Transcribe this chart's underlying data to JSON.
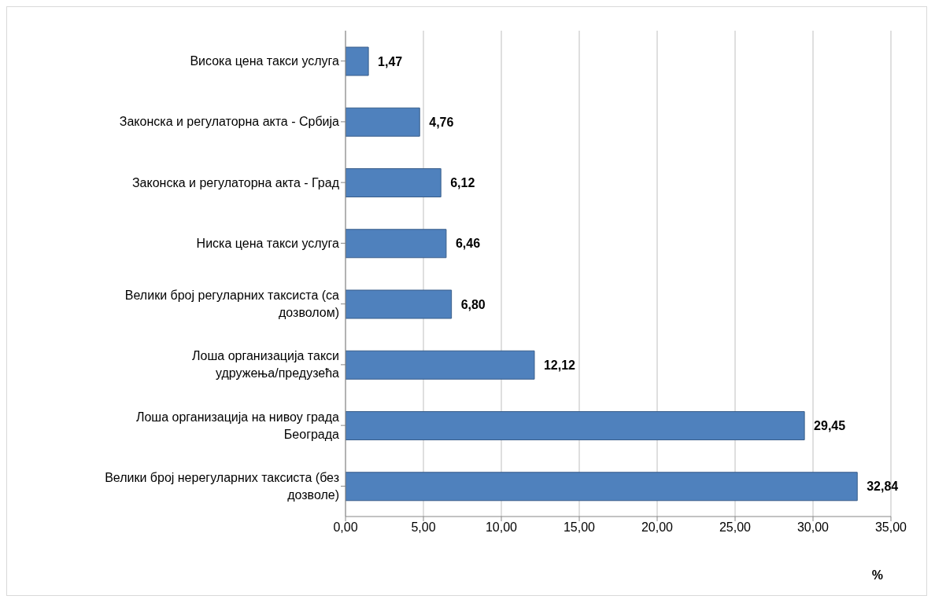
{
  "chart_data": {
    "type": "bar",
    "orientation": "horizontal",
    "xlabel": "%",
    "categories": [
      "Висока цена такси услуга",
      "Законска и регулаторна акта - Србија",
      "Законска и регулаторна акта - Град",
      "Ниска цена такси услуга",
      "Велики број регуларних таксиста (са дозволом)",
      "Лоша организација такси удружења/предузећа",
      "Лоша организација на нивоу града Београда",
      "Велики број нерегуларних таксиста (без дозволе)"
    ],
    "values": [
      1.47,
      4.76,
      6.12,
      6.46,
      6.8,
      12.12,
      29.45,
      32.84
    ],
    "value_labels": [
      "1,47",
      "4,76",
      "6,12",
      "6,46",
      "6,80",
      "12,12",
      "29,45",
      "32,84"
    ],
    "color": "#4f81bd",
    "xlim": [
      0,
      35
    ],
    "xticks": [
      {
        "value": 0,
        "label": "0,00"
      },
      {
        "value": 5,
        "label": "5,00"
      },
      {
        "value": 10,
        "label": "10,00"
      },
      {
        "value": 15,
        "label": "15,00"
      },
      {
        "value": 20,
        "label": "20,00"
      },
      {
        "value": 25,
        "label": "25,00"
      },
      {
        "value": 30,
        "label": "30,00"
      },
      {
        "value": 35,
        "label": "35,00"
      }
    ],
    "grid": "x",
    "legend": false
  }
}
